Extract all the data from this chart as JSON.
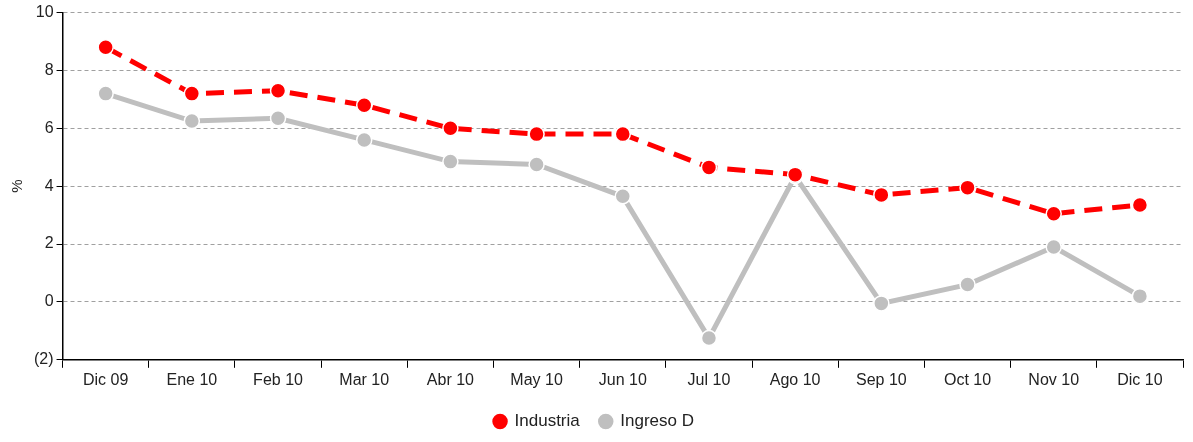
{
  "chart_data": {
    "type": "line",
    "ylabel": "%",
    "categories": [
      "Dic 09",
      "Ene 10",
      "Feb 10",
      "Mar 10",
      "Abr 10",
      "May 10",
      "Jun 10",
      "Jul 10",
      "Ago 10",
      "Sep 10",
      "Oct 10",
      "Nov 10",
      "Dic 10"
    ],
    "series": [
      {
        "name": "Ingreso D",
        "color": "#bfbfbf",
        "line_style": "solid",
        "values": [
          7.2,
          6.25,
          6.35,
          5.6,
          4.85,
          4.75,
          3.65,
          -1.25,
          4.35,
          -0.05,
          0.6,
          1.9,
          0.2
        ]
      },
      {
        "name": "Industria",
        "color": "#ff0000",
        "line_style": "dashed",
        "values": [
          8.8,
          7.2,
          7.3,
          6.8,
          6.0,
          5.8,
          5.8,
          4.65,
          4.4,
          3.7,
          3.95,
          3.05,
          3.35
        ]
      }
    ],
    "ylim": [
      -2,
      10
    ],
    "yticks": [
      {
        "value": -2,
        "label": "(2)"
      },
      0,
      2,
      4,
      6,
      8,
      10
    ],
    "grid": "y",
    "legend": "bottom",
    "marker": "circle"
  }
}
